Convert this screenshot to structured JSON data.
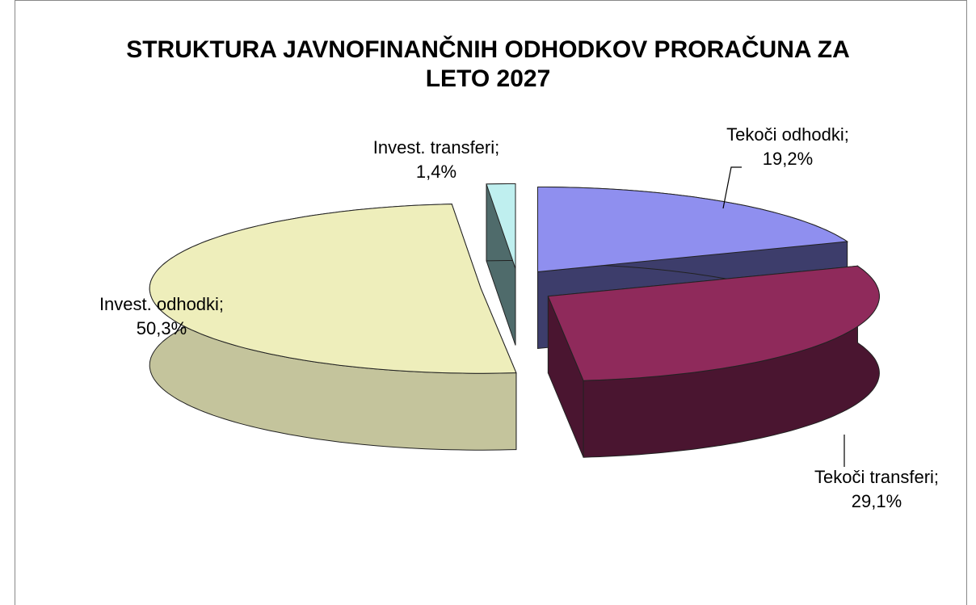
{
  "chart_data": {
    "type": "pie3d",
    "title": "STRUKTURA JAVNOFINANČNIH ODHODKOV PRORAČUNA ZA LETO 2027",
    "categories": [
      "Tekoči odhodki;",
      "Tekoči transferi;",
      "Invest. odhodki;",
      "Invest. transferi;"
    ],
    "values": [
      19.2,
      29.1,
      50.3,
      1.4
    ],
    "value_labels": [
      "19,2%",
      "29,1%",
      "50,3%",
      "1,4%"
    ],
    "colors": [
      "#8f8fef",
      "#8f2a5b",
      "#eeeebb",
      "#bfefef"
    ],
    "side_colors": [
      "#3d3d6b",
      "#4a1530",
      "#c4c49c",
      "#4f6b6b"
    ]
  }
}
